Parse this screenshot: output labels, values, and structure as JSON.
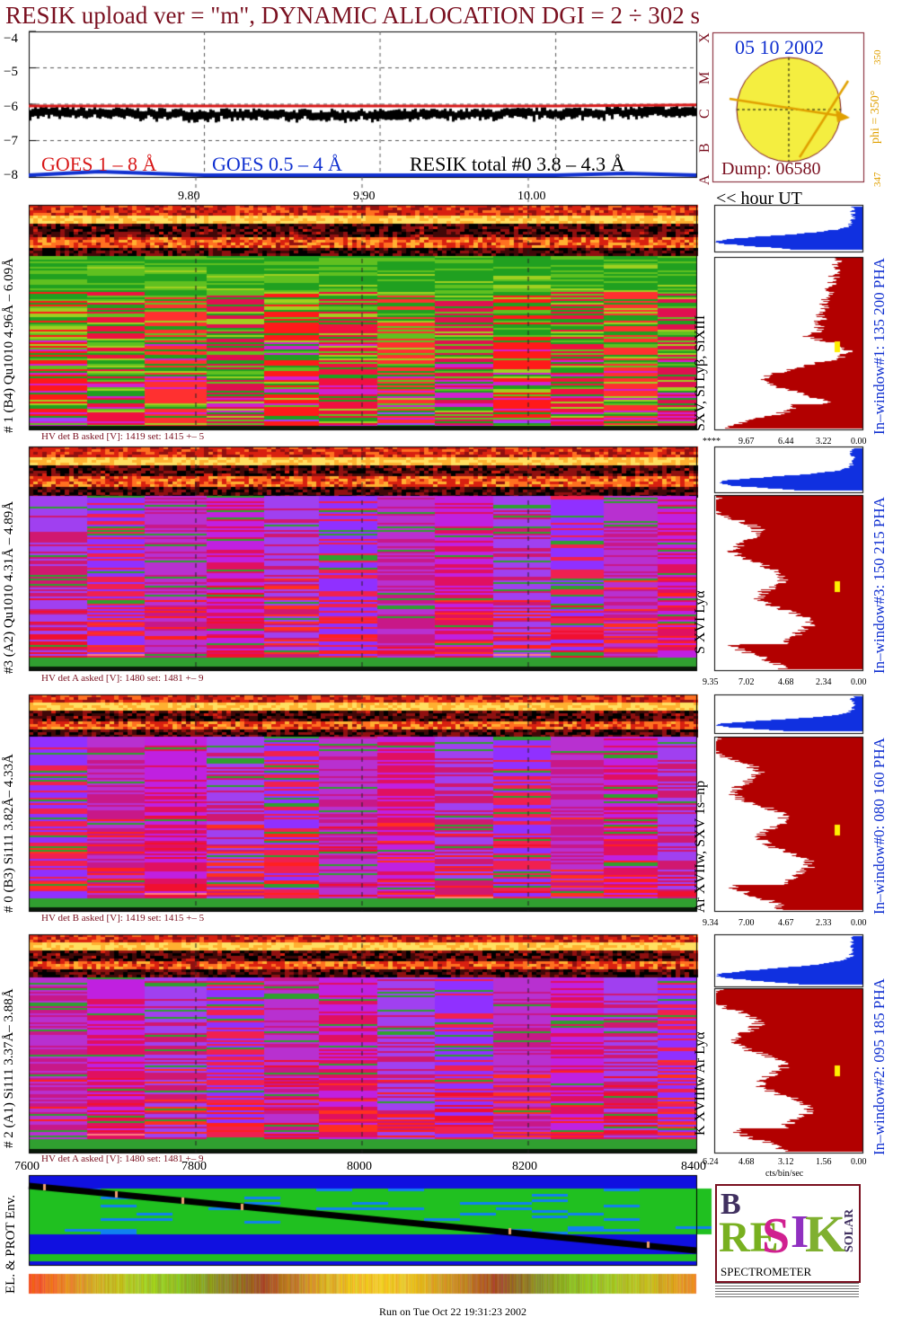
{
  "title": "RESIK upload ver = \"m\", DYNAMIC ALLOCATION  DGI =   2 ÷ 302 s",
  "date": "05 10 2002",
  "dump": "Dump: 06580",
  "phi_label": "phi = 350°",
  "phi_top": "350",
  "phi_bottom": "347",
  "goes_letters": [
    "A",
    "B",
    "C",
    "M",
    "X"
  ],
  "hour_ut": "<< hour UT",
  "legend": {
    "goes_1_8": "GOES 1 – 8 Å",
    "goes_05_4": "GOES 0.5 – 4 Å",
    "resik_total": "RESIK total #0  3.8 – 4.3 Å"
  },
  "colors": {
    "title": "#7a1020",
    "goes_1_8": "#d81818",
    "goes_05_4": "#1030d0",
    "resik_total": "#000000",
    "sun": "#f4ee40",
    "sun_arrow": "#e0a000",
    "histogram_fill": "#b20000",
    "pha_fill": "#1030e0"
  },
  "chart_data": [
    {
      "type": "line",
      "name": "goes-light-curve",
      "ylabel": "",
      "yticks": [
        "−4",
        "−5",
        "−6",
        "−7",
        "−8"
      ],
      "ylim": [
        -8,
        -4
      ],
      "xticks": [
        "9.80",
        "9.90",
        "10.00"
      ],
      "xlim": [
        9.7,
        10.08
      ],
      "series": [
        {
          "name": "GOES 1 – 8 Å",
          "color": "#d81818",
          "x": [
            9.7,
            9.8,
            9.9,
            10.0,
            10.08
          ],
          "values": [
            -6.05,
            -6.05,
            -6.05,
            -6.05,
            -6.02
          ]
        },
        {
          "name": "GOES 0.5 – 4 Å",
          "color": "#1030d0",
          "x": [
            9.7,
            9.74,
            9.8,
            9.9,
            10.0,
            10.04,
            10.08
          ],
          "values": [
            -8.0,
            -7.9,
            -8.0,
            -8.0,
            -8.0,
            -7.95,
            -8.0
          ]
        },
        {
          "name": "RESIK total #0  3.8 – 4.3 Å",
          "color": "#000000",
          "x": [
            9.7,
            9.8,
            9.9,
            10.0,
            10.08
          ],
          "values": [
            -6.15,
            -6.25,
            -6.3,
            -6.25,
            -6.2
          ]
        }
      ]
    },
    {
      "type": "heatmap",
      "name": "detector-1",
      "label": "# 1 (B4) Qu1010 4.96Å – 6.09Å",
      "lines": "SXV, Si Lyβ, SiXIII",
      "window": "In–window#1:  135 200 PHA",
      "hv": "HV det B asked [V]:  1419 set:  1415 +–    5",
      "hist_ticks": [
        "****",
        "9.67",
        "6.44",
        "3.22",
        "0.00"
      ]
    },
    {
      "type": "heatmap",
      "name": "detector-3",
      "label": "#3 (A2) Qu1010  4.31Å – 4.89Å",
      "lines": "S XVI Lyα",
      "window": "In–window#3:  150 215 PHA",
      "hv": "HV det A asked [V]:  1480 set:  1481 +–    9",
      "hist_ticks": [
        "9.35",
        "7.02",
        "4.68",
        "2.34",
        "0.00"
      ]
    },
    {
      "type": "heatmap",
      "name": "detector-0",
      "label": "# 0 (B3) Si111  3.82Å– 4.33Å",
      "lines": "Ar XVIIw,  SXV 1s–np",
      "window": "In–window#0:  080 160 PHA",
      "hv": "HV det B asked [V]:  1419 set:  1415 +–    5",
      "hist_ticks": [
        "9.34",
        "7.00",
        "4.67",
        "2.33",
        "0.00"
      ]
    },
    {
      "type": "heatmap",
      "name": "detector-2",
      "label": "# 2 (A1) Si111  3.37Å– 3.88Å",
      "lines": "K XVIIIw  Ar Lyα",
      "window": "In–window#2:  095 185 PHA",
      "hv": "HV det A asked [V]:  1480 set:  1481 +–    9",
      "hist_ticks": [
        "6.24",
        "4.68",
        "3.12",
        "1.56",
        "0.00"
      ],
      "hist_xlabel": "cts/bin/sec"
    },
    {
      "type": "line",
      "name": "particle-environment",
      "ylabel": "EL. & PROT Env.",
      "xticks": [
        "7600",
        "7800",
        "8000",
        "8200",
        "8400"
      ],
      "xlim": [
        7600,
        8400
      ]
    }
  ],
  "footer": "Run on Tue Oct 22 19:31:23 2002",
  "logo": {
    "letters": [
      "B",
      "RE",
      "S",
      "I",
      "K"
    ],
    "side": "SOLAR",
    "subtitle": "SPECTROMETER"
  }
}
